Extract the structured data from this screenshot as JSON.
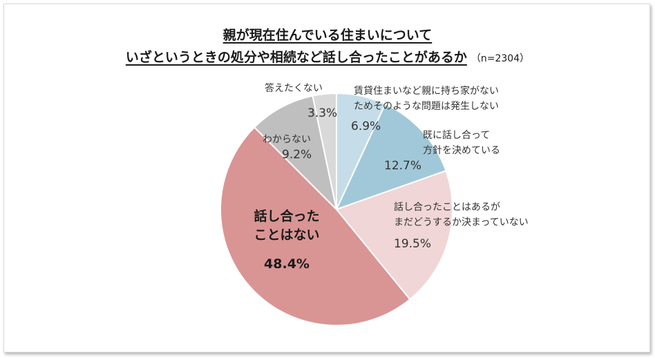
{
  "chart_data": {
    "type": "pie",
    "title_line1": "親が現在住んでいる住まいについて",
    "title_line2": "いざというときの処分や相続など話し合ったことがあるか",
    "sample_note": "（n=2304）",
    "slices": [
      {
        "name": "賃貸住まいなど親に持ち家がない\nためそのような問題は発生しない",
        "value": 6.9,
        "value_label": "6.9%",
        "color": "#c5dde8"
      },
      {
        "name": "既に話し合って\n方針を決めている",
        "value": 12.7,
        "value_label": "12.7%",
        "color": "#a1c8d8"
      },
      {
        "name": "話し合ったことはあるが\nまだどうするか決まっていない",
        "value": 19.5,
        "value_label": "19.5%",
        "color": "#f0d6d6"
      },
      {
        "name": "話し合った\nことはない",
        "value": 48.4,
        "value_label": "48.4%",
        "color": "#d99594"
      },
      {
        "name": "わからない",
        "value": 9.2,
        "value_label": "9.2%",
        "color": "#bfbfbf"
      },
      {
        "name": "答えたくない",
        "value": 3.3,
        "value_label": "3.3%",
        "color": "#d9d9d9"
      }
    ]
  }
}
